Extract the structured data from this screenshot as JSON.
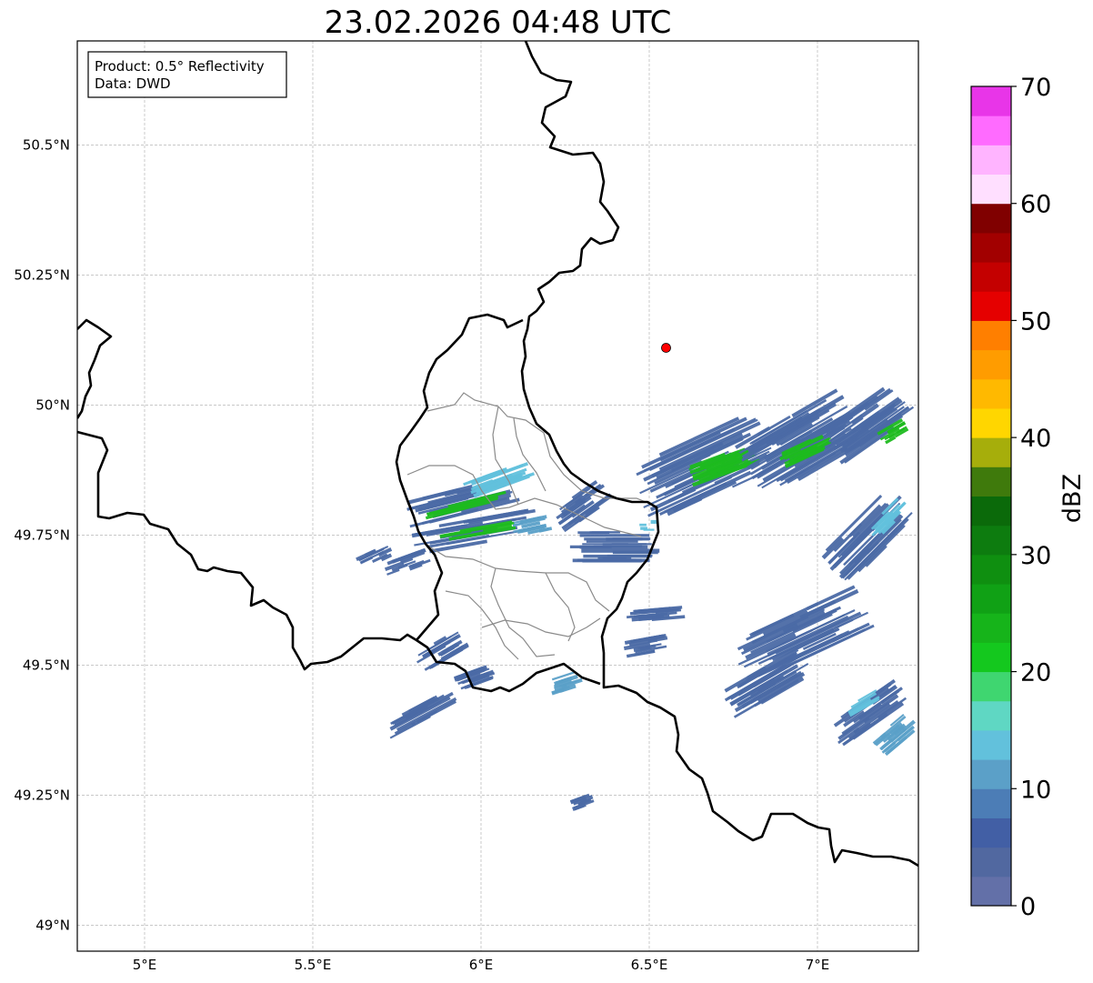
{
  "title": "23.02.2026 04:48 UTC",
  "infobox": {
    "product": "Product: 0.5° Reflectivity",
    "data": "Data: DWD"
  },
  "axes": {
    "lon_range": [
      4.8,
      7.3
    ],
    "lat_range": [
      48.95,
      50.7
    ],
    "x_ticks": [
      {
        "value": 5.0,
        "label": "5°E"
      },
      {
        "value": 5.5,
        "label": "5.5°E"
      },
      {
        "value": 6.0,
        "label": "6°E"
      },
      {
        "value": 6.5,
        "label": "6.5°E"
      },
      {
        "value": 7.0,
        "label": "7°E"
      }
    ],
    "y_ticks": [
      {
        "value": 49.0,
        "label": "49°N"
      },
      {
        "value": 49.25,
        "label": "49.25°N"
      },
      {
        "value": 49.5,
        "label": "49.5°N"
      },
      {
        "value": 49.75,
        "label": "49.75°N"
      },
      {
        "value": 50.0,
        "label": "50°N"
      },
      {
        "value": 50.25,
        "label": "50.25°N"
      },
      {
        "value": 50.5,
        "label": "50.5°N"
      }
    ],
    "grid": true
  },
  "radar_site": {
    "lon": 6.55,
    "lat": 50.11,
    "color": "#ff0000"
  },
  "colorbar": {
    "label": "dBZ",
    "min": 0,
    "max": 70,
    "step": 2.5,
    "ticks": [
      {
        "value": 0,
        "label": "0"
      },
      {
        "value": 10,
        "label": "10"
      },
      {
        "value": 20,
        "label": "20"
      },
      {
        "value": 30,
        "label": "30"
      },
      {
        "value": 40,
        "label": "40"
      },
      {
        "value": 50,
        "label": "50"
      },
      {
        "value": 60,
        "label": "60"
      },
      {
        "value": 70,
        "label": "70"
      }
    ],
    "colors": [
      "#6370a8",
      "#5168a0",
      "#425fa5",
      "#4c7db6",
      "#5ba0c8",
      "#62c1dc",
      "#5fd7c3",
      "#3fd670",
      "#14c81e",
      "#16b41a",
      "#10a115",
      "#0f8f10",
      "#0d7c0f",
      "#0b6a0a",
      "#3f7a0c",
      "#a6ae0b",
      "#ffd600",
      "#ffb900",
      "#ff9c00",
      "#ff7f00",
      "#e50000",
      "#c40000",
      "#a20000",
      "#800000",
      "#ffdfff",
      "#ffb4ff",
      "#ff6bff",
      "#e835e8"
    ]
  },
  "precip_colors": {
    "weak": "#4b6aa5",
    "light": "#5ba0c8",
    "moderate": "#62c1dc",
    "strong": "#1dbb1f"
  },
  "precip_bands": [
    {
      "lon": 5.95,
      "lat": 49.82,
      "len": 0.36,
      "wid": 0.05,
      "angle": -14,
      "level": "weak"
    },
    {
      "lon": 5.95,
      "lat": 49.81,
      "len": 0.26,
      "wid": 0.015,
      "angle": -14,
      "level": "strong"
    },
    {
      "lon": 6.05,
      "lat": 49.86,
      "len": 0.22,
      "wid": 0.03,
      "angle": -20,
      "level": "moderate"
    },
    {
      "lon": 5.98,
      "lat": 49.76,
      "len": 0.38,
      "wid": 0.05,
      "angle": -10,
      "level": "weak"
    },
    {
      "lon": 5.98,
      "lat": 49.76,
      "len": 0.25,
      "wid": 0.014,
      "angle": -10,
      "level": "strong"
    },
    {
      "lon": 6.3,
      "lat": 49.81,
      "len": 0.18,
      "wid": 0.05,
      "angle": -35,
      "level": "weak"
    },
    {
      "lon": 6.4,
      "lat": 49.73,
      "len": 0.28,
      "wid": 0.06,
      "angle": 0,
      "level": "weak"
    },
    {
      "lon": 6.5,
      "lat": 49.77,
      "len": 0.08,
      "wid": 0.02,
      "angle": 0,
      "level": "moderate"
    },
    {
      "lon": 6.65,
      "lat": 49.88,
      "len": 0.44,
      "wid": 0.12,
      "angle": -25,
      "level": "weak"
    },
    {
      "lon": 6.72,
      "lat": 49.89,
      "len": 0.22,
      "wid": 0.04,
      "angle": -20,
      "level": "strong"
    },
    {
      "lon": 6.95,
      "lat": 49.93,
      "len": 0.36,
      "wid": 0.12,
      "angle": -30,
      "level": "weak"
    },
    {
      "lon": 6.97,
      "lat": 49.92,
      "len": 0.18,
      "wid": 0.03,
      "angle": -25,
      "level": "strong"
    },
    {
      "lon": 7.15,
      "lat": 49.97,
      "len": 0.28,
      "wid": 0.08,
      "angle": -35,
      "level": "weak"
    },
    {
      "lon": 7.22,
      "lat": 49.95,
      "len": 0.1,
      "wid": 0.025,
      "angle": -30,
      "level": "strong"
    },
    {
      "lon": 7.15,
      "lat": 49.75,
      "len": 0.3,
      "wid": 0.08,
      "angle": -45,
      "level": "weak"
    },
    {
      "lon": 7.2,
      "lat": 49.78,
      "len": 0.16,
      "wid": 0.03,
      "angle": -45,
      "level": "moderate"
    },
    {
      "lon": 6.95,
      "lat": 49.56,
      "len": 0.42,
      "wid": 0.09,
      "angle": -25,
      "level": "weak"
    },
    {
      "lon": 6.85,
      "lat": 49.47,
      "len": 0.28,
      "wid": 0.06,
      "angle": -30,
      "level": "weak"
    },
    {
      "lon": 7.15,
      "lat": 49.41,
      "len": 0.25,
      "wid": 0.05,
      "angle": -35,
      "level": "weak"
    },
    {
      "lon": 7.13,
      "lat": 49.43,
      "len": 0.12,
      "wid": 0.02,
      "angle": -30,
      "level": "moderate"
    },
    {
      "lon": 7.23,
      "lat": 49.37,
      "len": 0.14,
      "wid": 0.04,
      "angle": -40,
      "level": "light"
    },
    {
      "lon": 5.78,
      "lat": 49.7,
      "len": 0.14,
      "wid": 0.03,
      "angle": -20,
      "level": "weak"
    },
    {
      "lon": 5.68,
      "lat": 49.71,
      "len": 0.12,
      "wid": 0.025,
      "angle": -25,
      "level": "weak"
    },
    {
      "lon": 5.88,
      "lat": 49.53,
      "len": 0.16,
      "wid": 0.04,
      "angle": -30,
      "level": "weak"
    },
    {
      "lon": 5.82,
      "lat": 49.41,
      "len": 0.24,
      "wid": 0.035,
      "angle": -28,
      "level": "weak"
    },
    {
      "lon": 5.98,
      "lat": 49.48,
      "len": 0.12,
      "wid": 0.03,
      "angle": -20,
      "level": "weak"
    },
    {
      "lon": 6.25,
      "lat": 49.47,
      "len": 0.1,
      "wid": 0.025,
      "angle": -18,
      "level": "light"
    },
    {
      "lon": 6.49,
      "lat": 49.54,
      "len": 0.14,
      "wid": 0.03,
      "angle": -10,
      "level": "weak"
    },
    {
      "lon": 6.52,
      "lat": 49.6,
      "len": 0.18,
      "wid": 0.025,
      "angle": -5,
      "level": "weak"
    },
    {
      "lon": 6.3,
      "lat": 49.24,
      "len": 0.07,
      "wid": 0.02,
      "angle": -20,
      "level": "weak"
    },
    {
      "lon": 6.15,
      "lat": 49.77,
      "len": 0.12,
      "wid": 0.03,
      "angle": -12,
      "level": "light"
    }
  ]
}
